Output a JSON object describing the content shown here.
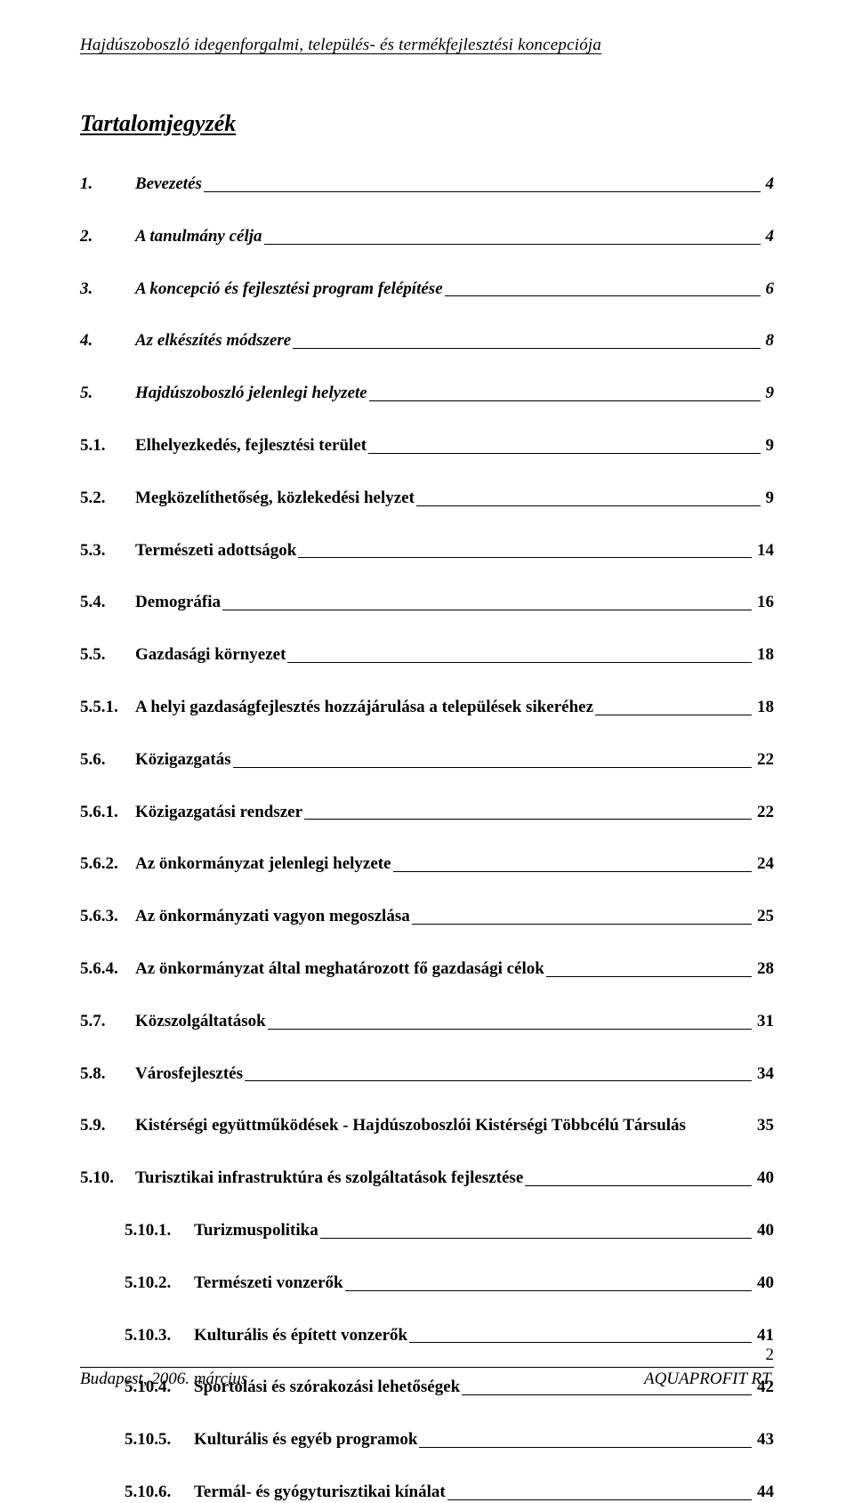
{
  "header": "Hajdúszoboszló idegenforgalmi, település- és termékfejlesztési koncepciója",
  "toc_title": "Tartalomjegyzék",
  "entries": [
    {
      "num": "1.",
      "label": "Bevezetés",
      "page": "4",
      "level": 1,
      "italic": true
    },
    {
      "num": "2.",
      "label": "A tanulmány célja",
      "page": "4",
      "level": 1,
      "italic": true
    },
    {
      "num": "3.",
      "label": "A koncepció és fejlesztési program felépítése",
      "page": "6",
      "level": 1,
      "italic": true
    },
    {
      "num": "4.",
      "label": "Az elkészítés módszere",
      "page": "8",
      "level": 1,
      "italic": true
    },
    {
      "num": "5.",
      "label": "Hajdúszoboszló jelenlegi helyzete",
      "page": "9",
      "level": 1,
      "italic": true
    },
    {
      "num": "5.1.",
      "label": "Elhelyezkedés, fejlesztési terület",
      "page": "9",
      "level": 2
    },
    {
      "num": "5.2.",
      "label": "Megközelíthetőség, közlekedési helyzet",
      "page": "9",
      "level": 2
    },
    {
      "num": "5.3.",
      "label": "Természeti adottságok",
      "page": "14",
      "level": 2
    },
    {
      "num": "5.4.",
      "label": "Demográfia",
      "page": "16",
      "level": 2
    },
    {
      "num": "5.5.",
      "label": "Gazdasági környezet",
      "page": "18",
      "level": 2
    },
    {
      "num": "5.5.1.",
      "label": "A helyi gazdaságfejlesztés hozzájárulása a települések sikeréhez",
      "page": "18",
      "level": 2
    },
    {
      "num": "5.6.",
      "label": "Közigazgatás",
      "page": "22",
      "level": 2
    },
    {
      "num": "5.6.1.",
      "label": "Közigazgatási rendszer",
      "page": "22",
      "level": 2
    },
    {
      "num": "5.6.2.",
      "label": "Az önkormányzat jelenlegi helyzete",
      "page": "24",
      "level": 2
    },
    {
      "num": "5.6.3.",
      "label": "Az önkormányzati vagyon megoszlása",
      "page": "25",
      "level": 2
    },
    {
      "num": "5.6.4.",
      "label": "Az önkormányzat által meghatározott fő gazdasági célok",
      "page": "28",
      "level": 2
    },
    {
      "num": "5.7.",
      "label": "Közszolgáltatások",
      "page": "31",
      "level": 2
    },
    {
      "num": "5.8.",
      "label": "Városfejlesztés",
      "page": "34",
      "level": 2
    },
    {
      "num": "5.9.",
      "label": "Kistérségi együttműködések - Hajdúszoboszlói Kistérségi Többcélú Társulás",
      "page": "35",
      "level": 2,
      "no_leader": true
    },
    {
      "num": "5.10.",
      "label": "Turisztikai infrastruktúra és szolgáltatások fejlesztése",
      "page": "40",
      "level": 2
    },
    {
      "num": "5.10.1.",
      "label": "Turizmuspolitika",
      "page": "40",
      "level": 3
    },
    {
      "num": "5.10.2.",
      "label": "Természeti vonzerők",
      "page": "40",
      "level": 3
    },
    {
      "num": "5.10.3.",
      "label": "Kulturális és épített vonzerők",
      "page": "41",
      "level": 3
    },
    {
      "num": "5.10.4.",
      "label": "Sportolási és szórakozási lehetőségek",
      "page": "42",
      "level": 3
    },
    {
      "num": "5.10.5.",
      "label": "Kulturális és egyéb programok",
      "page": "43",
      "level": 3
    },
    {
      "num": "5.10.6.",
      "label": "Termál- és gyógyturisztikai kínálat",
      "page": "44",
      "level": 3
    }
  ],
  "footer": {
    "page_num": "2",
    "left": "Budapest, 2006. március",
    "right": "AQUAPROFIT RT."
  }
}
